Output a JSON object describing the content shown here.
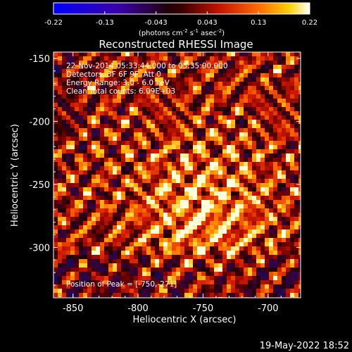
{
  "colorbar": {
    "ticks": [
      "-0.22",
      "-0.13",
      "-0.043",
      "0.043",
      "0.13",
      "0.22"
    ],
    "unit_parts": [
      "(photons cm",
      "-2",
      " s",
      "-1",
      " asec",
      "-2",
      ")"
    ]
  },
  "plot": {
    "title": "Reconstructed RHESSI Image",
    "info_lines": [
      "22-Nov-2014 05:33:44.000 to 05:35:00.000",
      "Detectors: 3F 6F 9F, Att 0",
      "Energy Range: 3.0 - 6.0 keV",
      "Clean     Total counts: 6.09E+03"
    ],
    "peak_label": "Position of Peak = [-750,-271]",
    "xlabel": "Heliocentric X (arcsec)",
    "ylabel": "Heliocentric Y (arcsec)",
    "x_ticks": [
      "-850",
      "-800",
      "-750",
      "-700"
    ],
    "y_ticks": [
      "-150",
      "-200",
      "-250",
      "-300"
    ],
    "xlim": [
      -865,
      -675
    ],
    "ylim": [
      -340,
      -145
    ],
    "peak": [
      -750,
      -271
    ]
  },
  "footer": {
    "timestamp": "19-May-2022 18:52"
  }
}
